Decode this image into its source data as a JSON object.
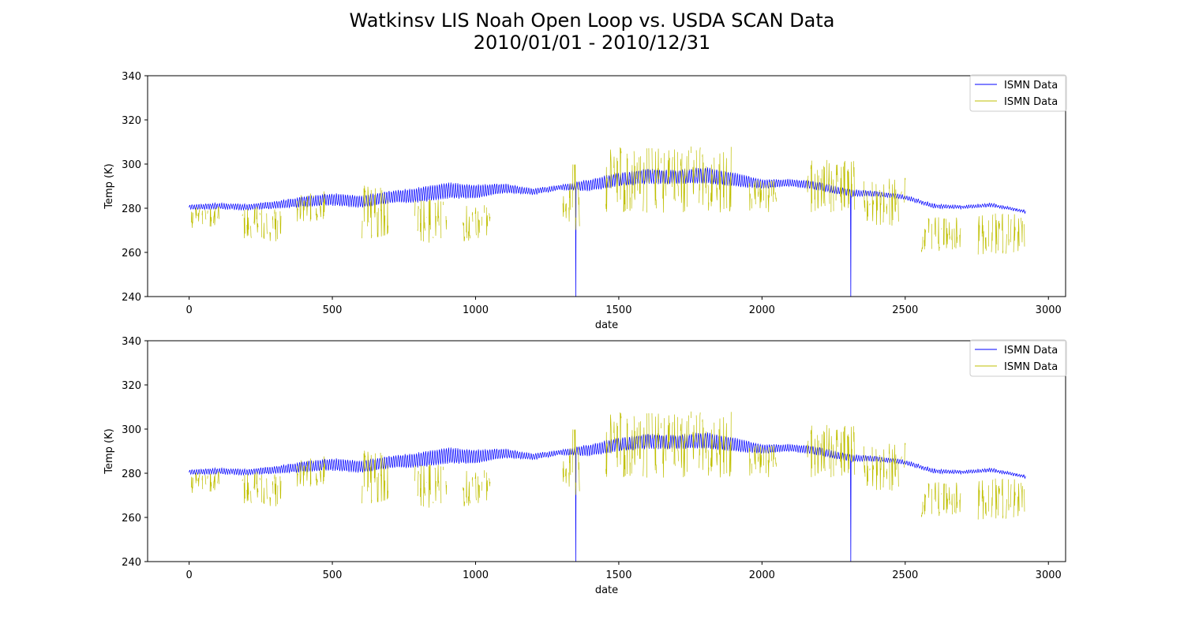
{
  "figure": {
    "title_line1": "Watkinsv LIS Noah Open Loop vs. USDA SCAN Data",
    "title_line2": "2010/01/01 - 2010/12/31"
  },
  "chart_data": [
    {
      "type": "line",
      "xlabel": "date",
      "ylabel": "Temp (K)",
      "xlim": [
        -145,
        3060
      ],
      "ylim": [
        240,
        340
      ],
      "xticks": [
        0,
        500,
        1000,
        1500,
        2000,
        2500,
        3000
      ],
      "yticks": [
        240,
        260,
        280,
        300,
        320,
        340
      ],
      "grid": false,
      "legend_position": "top-right",
      "series": [
        {
          "name": "ISMN Data",
          "color": "#0000ff",
          "x_start": 0,
          "x_end": 2920,
          "n_points": 2921,
          "envelope_x": [
            0,
            100,
            200,
            300,
            400,
            500,
            600,
            700,
            800,
            900,
            1000,
            1100,
            1200,
            1300,
            1400,
            1500,
            1600,
            1700,
            1800,
            1900,
            2000,
            2100,
            2200,
            2300,
            2400,
            2500,
            2600,
            2700,
            2800,
            2920
          ],
          "baseline": [
            280.5,
            281,
            280.5,
            281.5,
            283,
            284,
            283,
            285,
            286,
            288,
            287.5,
            289,
            287.5,
            289.5,
            290.5,
            293,
            294.5,
            294,
            295,
            293,
            291,
            291.5,
            290,
            287,
            286.5,
            285,
            281,
            280.5,
            281.5,
            278.5
          ],
          "diurnal_amp": [
            1.0,
            1.2,
            1.2,
            1.5,
            2.2,
            2.6,
            2.6,
            2.6,
            3.2,
            3.5,
            3.0,
            2.0,
            1.2,
            1.0,
            2.5,
            3.0,
            3.2,
            3.0,
            3.5,
            3.0,
            2.0,
            1.5,
            1.8,
            1.5,
            1.0,
            0.8,
            0.8,
            0.6,
            0.6,
            0.6
          ],
          "dropouts": [
            {
              "x": 1350,
              "y": 240
            },
            {
              "x": 2310,
              "y": 240
            }
          ]
        },
        {
          "name": "ISMN Data",
          "color": "#bfbf00",
          "sparse": true,
          "clusters": [
            {
              "x": [
                0,
                100
              ],
              "y_range": [
                271,
                281
              ]
            },
            {
              "x": [
                180,
                320
              ],
              "y_range": [
                265,
                281
              ]
            },
            {
              "x": [
                370,
                470
              ],
              "y_range": [
                274,
                288
              ]
            },
            {
              "x": [
                600,
                700
              ],
              "y_range": [
                266,
                291
              ]
            },
            {
              "x": [
                780,
                900
              ],
              "y_range": [
                264,
                284
              ]
            },
            {
              "x": [
                950,
                1050
              ],
              "y_range": [
                265,
                282
              ]
            },
            {
              "x": [
                1300,
                1360
              ],
              "y_range": [
                270,
                301
              ]
            },
            {
              "x": [
                1450,
                1900
              ],
              "y_range": [
                278,
                308
              ]
            },
            {
              "x": [
                1950,
                2050
              ],
              "y_range": [
                278,
                293
              ]
            },
            {
              "x": [
                2150,
                2320
              ],
              "y_range": [
                278,
                302
              ]
            },
            {
              "x": [
                2350,
                2500
              ],
              "y_range": [
                272,
                294
              ]
            },
            {
              "x": [
                2550,
                2700
              ],
              "y_range": [
                260,
                276
              ]
            },
            {
              "x": [
                2750,
                2920
              ],
              "y_range": [
                259,
                278
              ]
            }
          ]
        }
      ]
    },
    {
      "type": "line",
      "xlabel": "date",
      "ylabel": "Temp (K)",
      "xlim": [
        -145,
        3060
      ],
      "ylim": [
        240,
        340
      ],
      "xticks": [
        0,
        500,
        1000,
        1500,
        2000,
        2500,
        3000
      ],
      "yticks": [
        240,
        260,
        280,
        300,
        320,
        340
      ],
      "grid": false,
      "legend_position": "top-right",
      "series": [
        {
          "name": "ISMN Data",
          "color": "#0000ff",
          "x_start": 0,
          "x_end": 2920,
          "n_points": 2921,
          "envelope_x": [
            0,
            100,
            200,
            300,
            400,
            500,
            600,
            700,
            800,
            900,
            1000,
            1100,
            1200,
            1300,
            1400,
            1500,
            1600,
            1700,
            1800,
            1900,
            2000,
            2100,
            2200,
            2300,
            2400,
            2500,
            2600,
            2700,
            2800,
            2920
          ],
          "baseline": [
            280.5,
            281,
            280.5,
            281.5,
            283,
            284,
            283,
            285,
            286,
            288,
            287.5,
            289,
            287.5,
            289.5,
            290.5,
            293,
            294.5,
            294,
            295,
            293,
            291,
            291.5,
            290,
            287,
            286.5,
            285,
            281,
            280.5,
            281.5,
            278.5
          ],
          "diurnal_amp": [
            1.0,
            1.2,
            1.2,
            1.5,
            2.2,
            2.6,
            2.6,
            2.6,
            3.2,
            3.5,
            3.0,
            2.0,
            1.2,
            1.0,
            2.5,
            3.0,
            3.2,
            3.0,
            3.5,
            3.0,
            2.0,
            1.5,
            1.8,
            1.5,
            1.0,
            0.8,
            0.8,
            0.6,
            0.6,
            0.6
          ],
          "dropouts": [
            {
              "x": 1350,
              "y": 240
            },
            {
              "x": 2310,
              "y": 240
            }
          ]
        },
        {
          "name": "ISMN Data",
          "color": "#bfbf00",
          "sparse": true,
          "clusters": [
            {
              "x": [
                0,
                100
              ],
              "y_range": [
                271,
                281
              ]
            },
            {
              "x": [
                180,
                320
              ],
              "y_range": [
                265,
                281
              ]
            },
            {
              "x": [
                370,
                470
              ],
              "y_range": [
                274,
                288
              ]
            },
            {
              "x": [
                600,
                700
              ],
              "y_range": [
                266,
                291
              ]
            },
            {
              "x": [
                780,
                900
              ],
              "y_range": [
                264,
                284
              ]
            },
            {
              "x": [
                950,
                1050
              ],
              "y_range": [
                265,
                282
              ]
            },
            {
              "x": [
                1300,
                1360
              ],
              "y_range": [
                270,
                301
              ]
            },
            {
              "x": [
                1450,
                1900
              ],
              "y_range": [
                278,
                308
              ]
            },
            {
              "x": [
                1950,
                2050
              ],
              "y_range": [
                278,
                293
              ]
            },
            {
              "x": [
                2150,
                2320
              ],
              "y_range": [
                278,
                302
              ]
            },
            {
              "x": [
                2350,
                2500
              ],
              "y_range": [
                272,
                294
              ]
            },
            {
              "x": [
                2550,
                2700
              ],
              "y_range": [
                260,
                276
              ]
            },
            {
              "x": [
                2750,
                2920
              ],
              "y_range": [
                259,
                278
              ]
            }
          ]
        }
      ]
    }
  ]
}
